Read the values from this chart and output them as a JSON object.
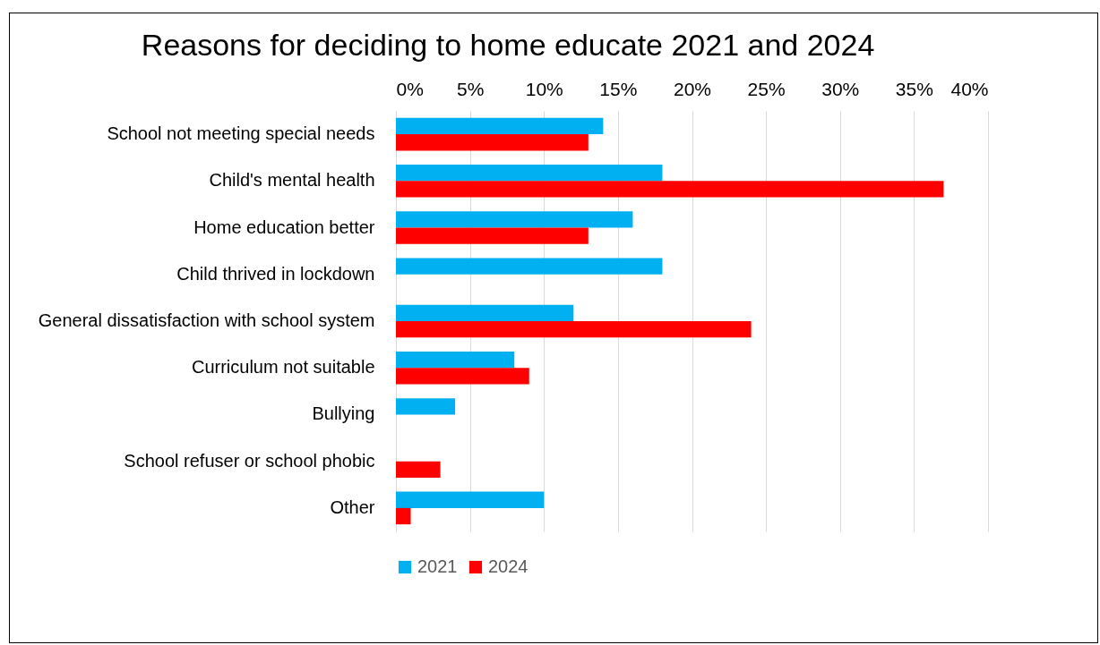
{
  "chart_data": {
    "type": "bar",
    "orientation": "horizontal",
    "title": "Reasons for deciding to home educate 2021 and 2024",
    "categories": [
      "School not meeting special needs",
      "Child's mental health",
      "Home education better",
      "Child thrived in lockdown",
      "General  dissatisfaction  with school system",
      "Curriculum not suitable",
      "Bullying",
      "School refuser or school phobic",
      "Other"
    ],
    "series": [
      {
        "name": "2021",
        "color": "#00b0f0",
        "values": [
          14,
          18,
          16,
          18,
          12,
          8,
          4,
          null,
          10
        ]
      },
      {
        "name": "2024",
        "color": "#ff0000",
        "values": [
          13,
          37,
          13,
          null,
          24,
          9,
          null,
          3,
          1
        ]
      }
    ],
    "xlim": [
      0,
      40
    ],
    "xticks": [
      {
        "value": 0,
        "label": "0%"
      },
      {
        "value": 5,
        "label": "5%"
      },
      {
        "value": 10,
        "label": "10%"
      },
      {
        "value": 15,
        "label": "15%"
      },
      {
        "value": 20,
        "label": "20%"
      },
      {
        "value": 25,
        "label": "25%"
      },
      {
        "value": 30,
        "label": "30%"
      },
      {
        "value": 35,
        "label": "35%"
      },
      {
        "value": 40,
        "label": "40%"
      }
    ],
    "grid": "x",
    "legend": "bottom"
  }
}
